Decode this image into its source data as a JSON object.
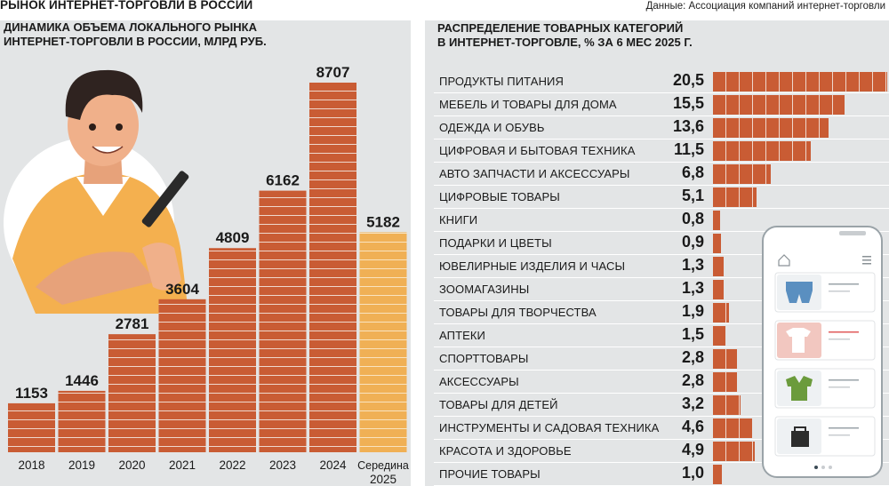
{
  "header": {
    "title": "РЫНОК ИНТЕРНЕТ-ТОРГОВЛИ В РОССИИ",
    "source": "Данные: Ассоциация компаний интернет-торговли"
  },
  "colors": {
    "bar": "#c95c34",
    "bar_highlight": "#f0b055",
    "panel_bg": "#e3e5e6"
  },
  "chart_data": [
    {
      "type": "bar",
      "title_line1": "ДИНАМИКА ОБЪЕМА ЛОКАЛЬНОГО РЫНКА",
      "title_line2": "ИНТЕРНЕТ-ТОРГОВЛИ В РОССИИ, МЛРД РУБ.",
      "categories": [
        "2018",
        "2019",
        "2020",
        "2021",
        "2022",
        "2023",
        "2024",
        "Середина 2025"
      ],
      "category_lines": [
        [
          "2018"
        ],
        [
          "2019"
        ],
        [
          "2020"
        ],
        [
          "2021"
        ],
        [
          "2022"
        ],
        [
          "2023"
        ],
        [
          "2024"
        ],
        [
          "Середина",
          "2025"
        ]
      ],
      "values": [
        1153,
        1446,
        2781,
        3604,
        4809,
        6162,
        8707,
        5182
      ],
      "value_labels": [
        "1153",
        "1446",
        "2781",
        "3604",
        "4809",
        "6162",
        "8707",
        "5182"
      ],
      "highlight_index": 7,
      "ylim": [
        0,
        8707
      ]
    },
    {
      "type": "bar",
      "orientation": "horizontal",
      "title_line1": "РАСПРЕДЕЛЕНИЕ ТОВАРНЫХ КАТЕГОРИЙ",
      "title_line2": "В ИНТЕРНЕТ-ТОРГОВЛЕ, % ЗА 6 МЕС 2025 Г.",
      "categories": [
        "ПРОДУКТЫ ПИТАНИЯ",
        "МЕБЕЛЬ И ТОВАРЫ ДЛЯ ДОМА",
        "ОДЕЖДА И ОБУВЬ",
        "ЦИФРОВАЯ И БЫТОВАЯ ТЕХНИКА",
        "АВТО ЗАПЧАСТИ И АКСЕССУАРЫ",
        "ЦИФРОВЫЕ ТОВАРЫ",
        "КНИГИ",
        "ПОДАРКИ И ЦВЕТЫ",
        "ЮВЕЛИРНЫЕ ИЗДЕЛИЯ И ЧАСЫ",
        "ЗООМАГАЗИНЫ",
        "ТОВАРЫ ДЛЯ ТВОРЧЕСТВА",
        "АПТЕКИ",
        "СПОРТТОВАРЫ",
        "АКСЕССУАРЫ",
        "ТОВАРЫ ДЛЯ ДЕТЕЙ",
        "ИНСТРУМЕНТЫ И САДОВАЯ ТЕХНИКА",
        "КРАСОТА И ЗДОРОВЬЕ",
        "ПРОЧИЕ ТОВАРЫ"
      ],
      "values": [
        20.5,
        15.5,
        13.6,
        11.5,
        6.8,
        5.1,
        0.8,
        0.9,
        1.3,
        1.3,
        1.9,
        1.5,
        2.8,
        2.8,
        3.2,
        4.6,
        4.9,
        1.0
      ],
      "value_labels": [
        "20,5",
        "15,5",
        "13,6",
        "11,5",
        "6,8",
        "5,1",
        "0,8",
        "0,9",
        "1,3",
        "1,3",
        "1,9",
        "1,5",
        "2,8",
        "2,8",
        "3,2",
        "4,6",
        "4,9",
        "1,0"
      ],
      "xlim": [
        0,
        20.5
      ]
    }
  ]
}
